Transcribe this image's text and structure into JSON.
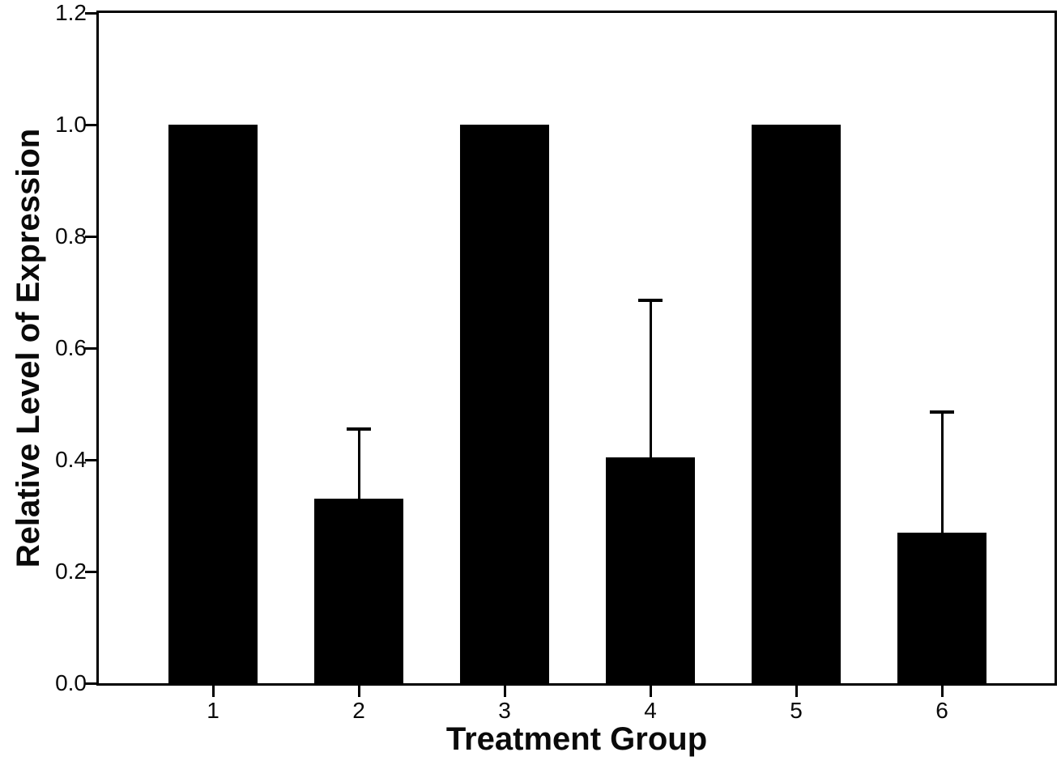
{
  "figure": {
    "xlabel": "Treatment Group",
    "ylabel": "Relative Level of Expression"
  },
  "chart_data": {
    "type": "bar",
    "title": "",
    "categories": [
      "1",
      "2",
      "3",
      "4",
      "5",
      "6"
    ],
    "values": [
      1.0,
      0.33,
      1.0,
      0.405,
      1.0,
      0.27
    ],
    "errors_up": [
      null,
      0.125,
      null,
      0.28,
      null,
      0.215
    ],
    "error_bar_tops": [
      null,
      0.455,
      null,
      0.685,
      null,
      0.485
    ],
    "xlabel": "Treatment Group",
    "ylabel": "Relative Level of Expression",
    "ylim": [
      0,
      1.2
    ],
    "yticks": [
      0.0,
      0.2,
      0.4,
      0.6,
      0.8,
      1.0,
      1.2
    ],
    "grid": false,
    "legend": null,
    "error_direction": "upper-only",
    "bar_color": "#000000",
    "axis_color": "#000000",
    "background": "#ffffff"
  }
}
